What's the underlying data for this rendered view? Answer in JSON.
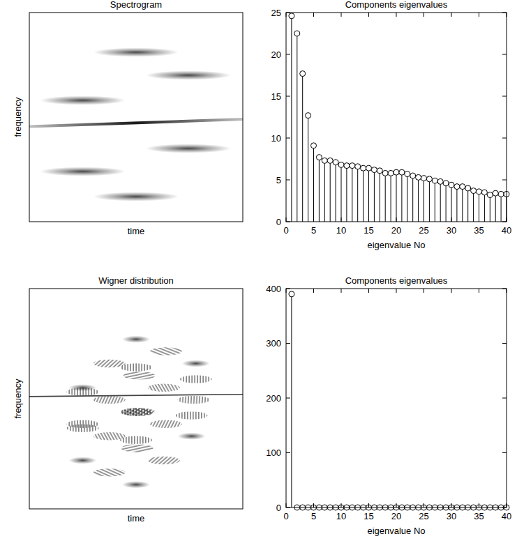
{
  "chart_data": [
    {
      "type": "spectrogram",
      "title": "Spectrogram",
      "x_label": "time",
      "y_label": "frequency",
      "tick_labels": false,
      "xlim": [
        0,
        1
      ],
      "ylim": [
        0,
        1
      ],
      "atoms": [
        {
          "time": 0.5,
          "frequency": 0.81
        },
        {
          "time": 0.745,
          "frequency": 0.7
        },
        {
          "time": 0.25,
          "frequency": 0.58
        },
        {
          "time": 0.745,
          "frequency": 0.35
        },
        {
          "time": 0.25,
          "frequency": 0.24
        },
        {
          "time": 0.5,
          "frequency": 0.12
        }
      ],
      "chirp": {
        "time": [
          0,
          1
        ],
        "frequency": [
          0.455,
          0.49
        ]
      }
    },
    {
      "type": "stem",
      "title": "Components eigenvalues",
      "x_label": "eigenvalue No",
      "marker": "circle",
      "x": [
        1,
        2,
        3,
        4,
        5,
        6,
        7,
        8,
        9,
        10,
        11,
        12,
        13,
        14,
        15,
        16,
        17,
        18,
        19,
        20,
        21,
        22,
        23,
        24,
        25,
        26,
        27,
        28,
        29,
        30,
        31,
        32,
        33,
        34,
        35,
        36,
        37,
        38,
        39,
        40
      ],
      "values": [
        24.6,
        22.5,
        17.7,
        12.7,
        9.1,
        7.7,
        7.3,
        7.3,
        7.1,
        6.8,
        6.7,
        6.7,
        6.6,
        6.4,
        6.4,
        6.2,
        6.1,
        5.8,
        5.8,
        5.9,
        5.9,
        5.7,
        5.5,
        5.3,
        5.2,
        5.1,
        4.9,
        4.8,
        4.6,
        4.4,
        4.2,
        4.2,
        4.0,
        3.7,
        3.6,
        3.5,
        3.2,
        3.4,
        3.3,
        3.3
      ],
      "xlim": [
        0,
        40
      ],
      "ylim": [
        0,
        25
      ],
      "xticks": [
        0,
        5,
        10,
        15,
        20,
        25,
        30,
        35,
        40
      ],
      "yticks": [
        0,
        5,
        10,
        15,
        20,
        25
      ]
    },
    {
      "type": "wigner",
      "title": "Wigner distribution",
      "x_label": "time",
      "y_label": "frequency",
      "tick_labels": false,
      "xlim": [
        0,
        1
      ],
      "ylim": [
        0,
        1
      ],
      "atoms": [
        {
          "time": 0.5,
          "frequency": 0.77
        },
        {
          "time": 0.78,
          "frequency": 0.66
        },
        {
          "time": 0.25,
          "frequency": 0.55
        },
        {
          "time": 0.76,
          "frequency": 0.33
        },
        {
          "time": 0.25,
          "frequency": 0.22
        },
        {
          "time": 0.5,
          "frequency": 0.11
        }
      ],
      "chirp": {
        "time": [
          0,
          1
        ],
        "frequency": [
          0.51,
          0.52
        ]
      }
    },
    {
      "type": "stem",
      "title": "Components eigenvalues",
      "x_label": "eigenvalue No",
      "marker": "circle",
      "x": [
        1,
        2,
        3,
        4,
        5,
        6,
        7,
        8,
        9,
        10,
        11,
        12,
        13,
        14,
        15,
        16,
        17,
        18,
        19,
        20,
        21,
        22,
        23,
        24,
        25,
        26,
        27,
        28,
        29,
        30,
        31,
        32,
        33,
        34,
        35,
        36,
        37,
        38,
        39,
        40
      ],
      "values": [
        390,
        0,
        0,
        0,
        0,
        0,
        0,
        0,
        0,
        0,
        0,
        0,
        0,
        0,
        0,
        0,
        0,
        0,
        0,
        0,
        0,
        0,
        0,
        0,
        0,
        0,
        0,
        0,
        0,
        0,
        0,
        0,
        0,
        0,
        0,
        0,
        0,
        0,
        0,
        0
      ],
      "xlim": [
        0,
        40
      ],
      "ylim": [
        0,
        400
      ],
      "xticks": [
        0,
        5,
        10,
        15,
        20,
        25,
        30,
        35,
        40
      ],
      "yticks": [
        0,
        100,
        200,
        300,
        400
      ]
    }
  ]
}
